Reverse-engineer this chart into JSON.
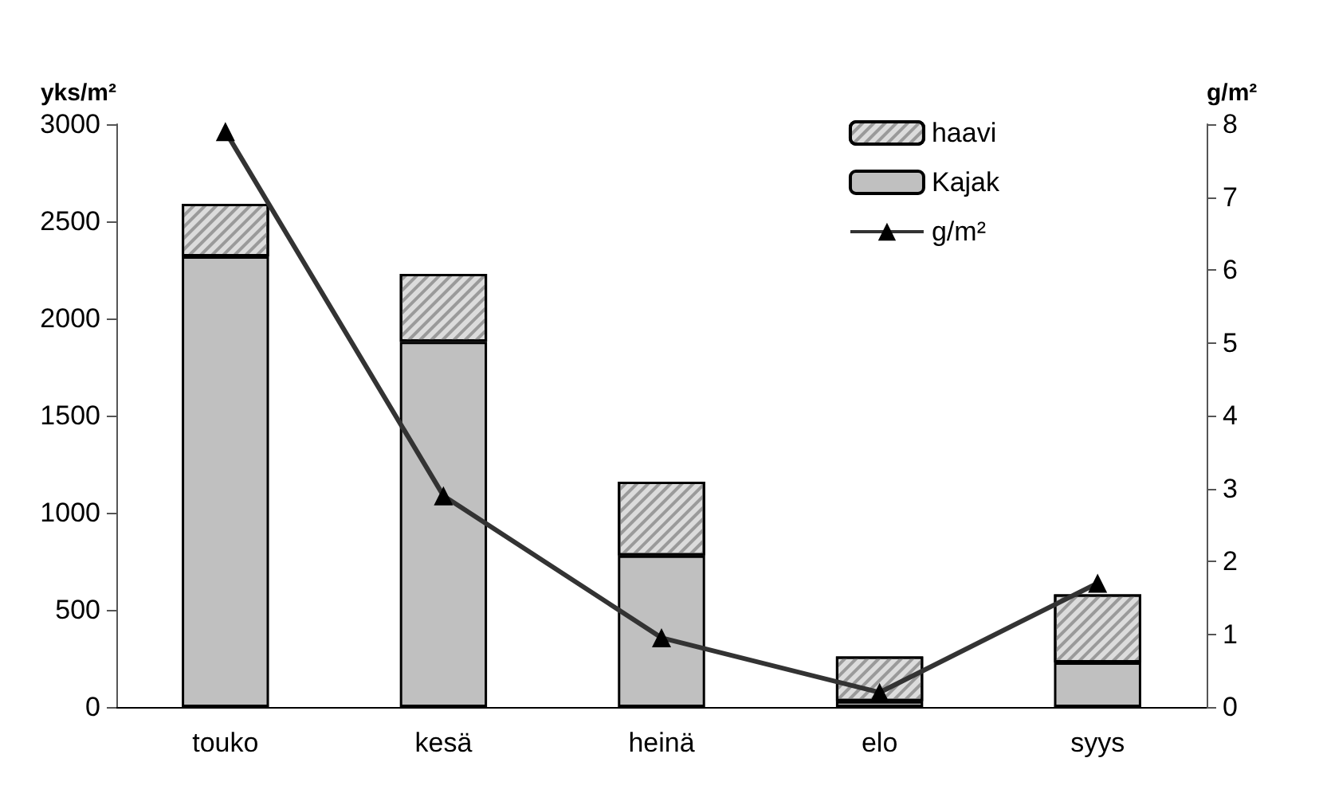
{
  "chart_data": {
    "type": "bar",
    "stacked": true,
    "ylabel": "yks/m²",
    "y2label": "g/m²",
    "categories": [
      "touko",
      "kesä",
      "heinä",
      "elo",
      "syys"
    ],
    "series": [
      {
        "name": "Kajak",
        "color": "#c0c0c0",
        "values": [
          2320,
          1880,
          780,
          30,
          230
        ]
      },
      {
        "name": "haavi",
        "color": "#dcdcdc",
        "values": [
          270,
          350,
          380,
          230,
          350
        ]
      },
      {
        "name": "g/m²",
        "type": "line",
        "axis": "y2",
        "color": "#333333",
        "marker": "triangle",
        "values": [
          7.9,
          2.9,
          0.95,
          0.2,
          1.7
        ]
      }
    ],
    "ylim": [
      0,
      3000
    ],
    "yticks": [
      0,
      500,
      1000,
      1500,
      2000,
      2500,
      3000
    ],
    "y2lim": [
      0,
      8
    ],
    "y2ticks": [
      0,
      1,
      2,
      3,
      4,
      5,
      6,
      7,
      8
    ],
    "grid": false,
    "legend": "top right"
  }
}
